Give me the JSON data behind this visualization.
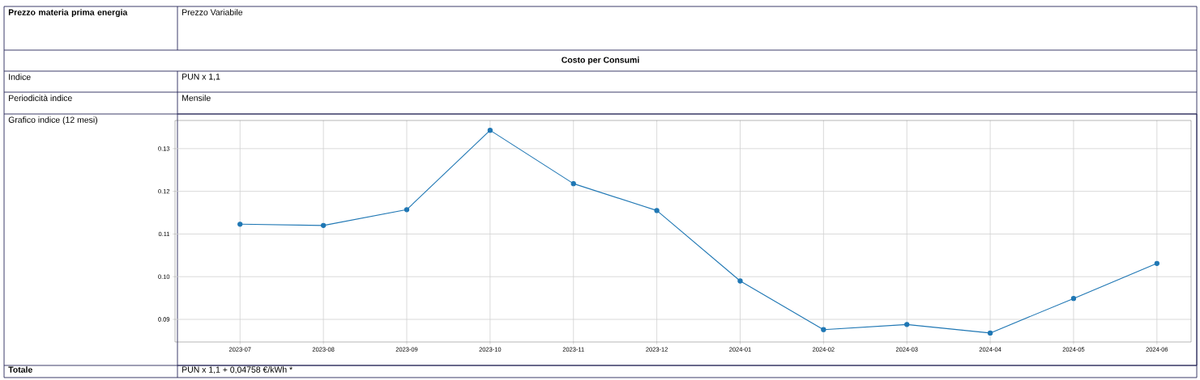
{
  "chart_data": {
    "type": "line",
    "title": "Costo per Consumi",
    "categories": [
      "2023-07",
      "2023-08",
      "2023-09",
      "2023-10",
      "2023-11",
      "2023-12",
      "2024-01",
      "2024-02",
      "2024-03",
      "2024-04",
      "2024-05",
      "2024-06"
    ],
    "series": [
      {
        "color": "#1f77b4",
        "values": [
          0.1123,
          0.112,
          0.1157,
          0.1343,
          0.1218,
          0.1155,
          0.099,
          0.0876,
          0.0888,
          0.0868,
          0.0949,
          0.1031
        ]
      }
    ],
    "ylim": [
      0.0847,
      0.1366
    ],
    "yticks": [
      {
        "value": 0.09,
        "label": "0.09"
      },
      {
        "value": 0.1,
        "label": "0.10"
      },
      {
        "value": 0.11,
        "label": "0.11"
      },
      {
        "value": 0.12,
        "label": "0.12"
      },
      {
        "value": 0.13,
        "label": "0.13"
      }
    ],
    "grid": true,
    "marker": "circle",
    "line_style": "solid",
    "annotations": [
      "Prezzo materia prima energia",
      "Prezzo Variabile",
      "Indice",
      "PUN x 1,1",
      "Periodicità indice",
      "Mensile",
      "Grafico indice (12 mesi)",
      "Totale",
      "PUN x 1,1 + 0,04758 €/kWh *"
    ]
  }
}
